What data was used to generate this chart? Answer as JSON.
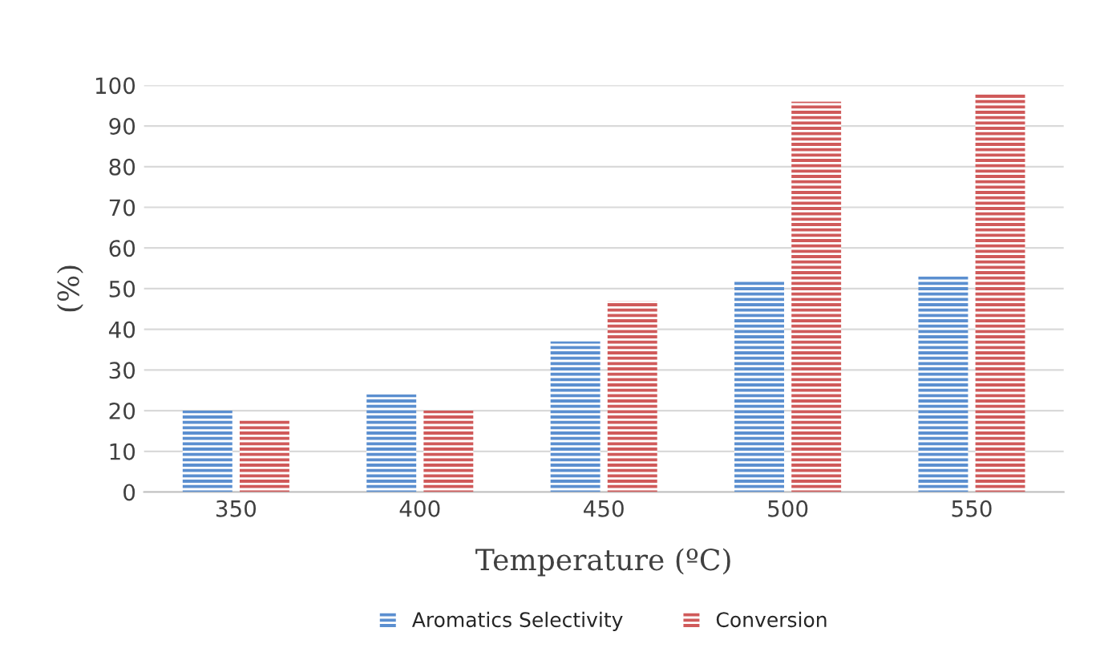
{
  "chart_data": {
    "type": "bar",
    "xlabel": "Temperature (ºC)",
    "ylabel": "(%)",
    "categories": [
      "350",
      "400",
      "450",
      "500",
      "550"
    ],
    "series": [
      {
        "name": "Aromatics Selectivity",
        "color": "#5b8fd0",
        "values": [
          20,
          24,
          37,
          52,
          53
        ]
      },
      {
        "name": "Conversion",
        "color": "#d05a5a",
        "values": [
          18,
          20,
          47,
          96,
          98
        ]
      }
    ],
    "ylim": [
      0,
      100
    ],
    "yticks": [
      0,
      10,
      20,
      30,
      40,
      50,
      60,
      70,
      80,
      90,
      100
    ],
    "grid": "y",
    "legend": "bottom"
  }
}
